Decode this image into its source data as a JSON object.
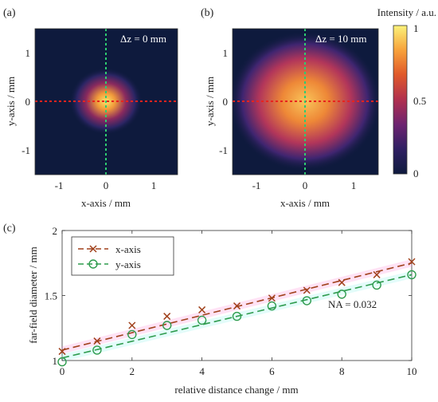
{
  "chart_data": [
    {
      "type": "heatmap",
      "panel_label": "(a)",
      "annotation": "Δz = 0 mm",
      "xlabel": "x-axis / mm",
      "ylabel": "y-axis / mm",
      "xlim": [
        -1.5,
        1.5
      ],
      "ylim": [
        -1.5,
        1.5
      ],
      "x_ticks": [
        "-1",
        "0",
        "1"
      ],
      "y_ticks": [
        "1",
        "0",
        "-1"
      ],
      "spot_radius_mm": 0.35
    },
    {
      "type": "heatmap",
      "panel_label": "(b)",
      "annotation": "Δz = 10 mm",
      "xlabel": "x-axis / mm",
      "ylabel": "y-axis / mm",
      "xlim": [
        -1.5,
        1.5
      ],
      "ylim": [
        -1.5,
        1.5
      ],
      "x_ticks": [
        "-1",
        "0",
        "1"
      ],
      "y_ticks": [
        "1",
        "0",
        "-1"
      ],
      "spot_radius_mm": 0.75
    },
    {
      "type": "scatter",
      "panel_label": "(c)",
      "xlabel": "relative distance change / mm",
      "ylabel": "far-field diameter / mm",
      "xlim": [
        0,
        10
      ],
      "ylim": [
        1,
        2
      ],
      "x_ticks": [
        "0",
        "2",
        "4",
        "6",
        "8",
        "10"
      ],
      "y_ticks": [
        "2",
        "1.5",
        "1"
      ],
      "annotation": "NA = 0.032",
      "x": [
        0,
        1,
        2,
        3,
        4,
        5,
        6,
        7,
        8,
        9,
        10
      ],
      "series": [
        {
          "name": "x-axis",
          "marker": "x",
          "color": "#a0411b",
          "values": [
            1.07,
            1.15,
            1.27,
            1.34,
            1.39,
            1.42,
            1.48,
            1.54,
            1.6,
            1.66,
            1.76
          ],
          "fit": [
            1.08,
            1.75
          ]
        },
        {
          "name": "y-axis",
          "marker": "o",
          "color": "#2e9b4d",
          "values": [
            0.99,
            1.08,
            1.2,
            1.27,
            1.31,
            1.34,
            1.42,
            1.46,
            1.51,
            1.58,
            1.66
          ],
          "fit": [
            1.02,
            1.66
          ]
        }
      ]
    }
  ],
  "colorbar": {
    "label": "Intensity / a.u.",
    "ticks": [
      "1",
      "0.5",
      "0"
    ],
    "colors": [
      "#fbf27a",
      "#f7a03a",
      "#e0592a",
      "#b0304e",
      "#6c2370",
      "#2f1f62",
      "#0e1a3d"
    ]
  },
  "crosshair": {
    "horizontal_color": "#e8231e",
    "vertical_color": "#2ecc71"
  }
}
